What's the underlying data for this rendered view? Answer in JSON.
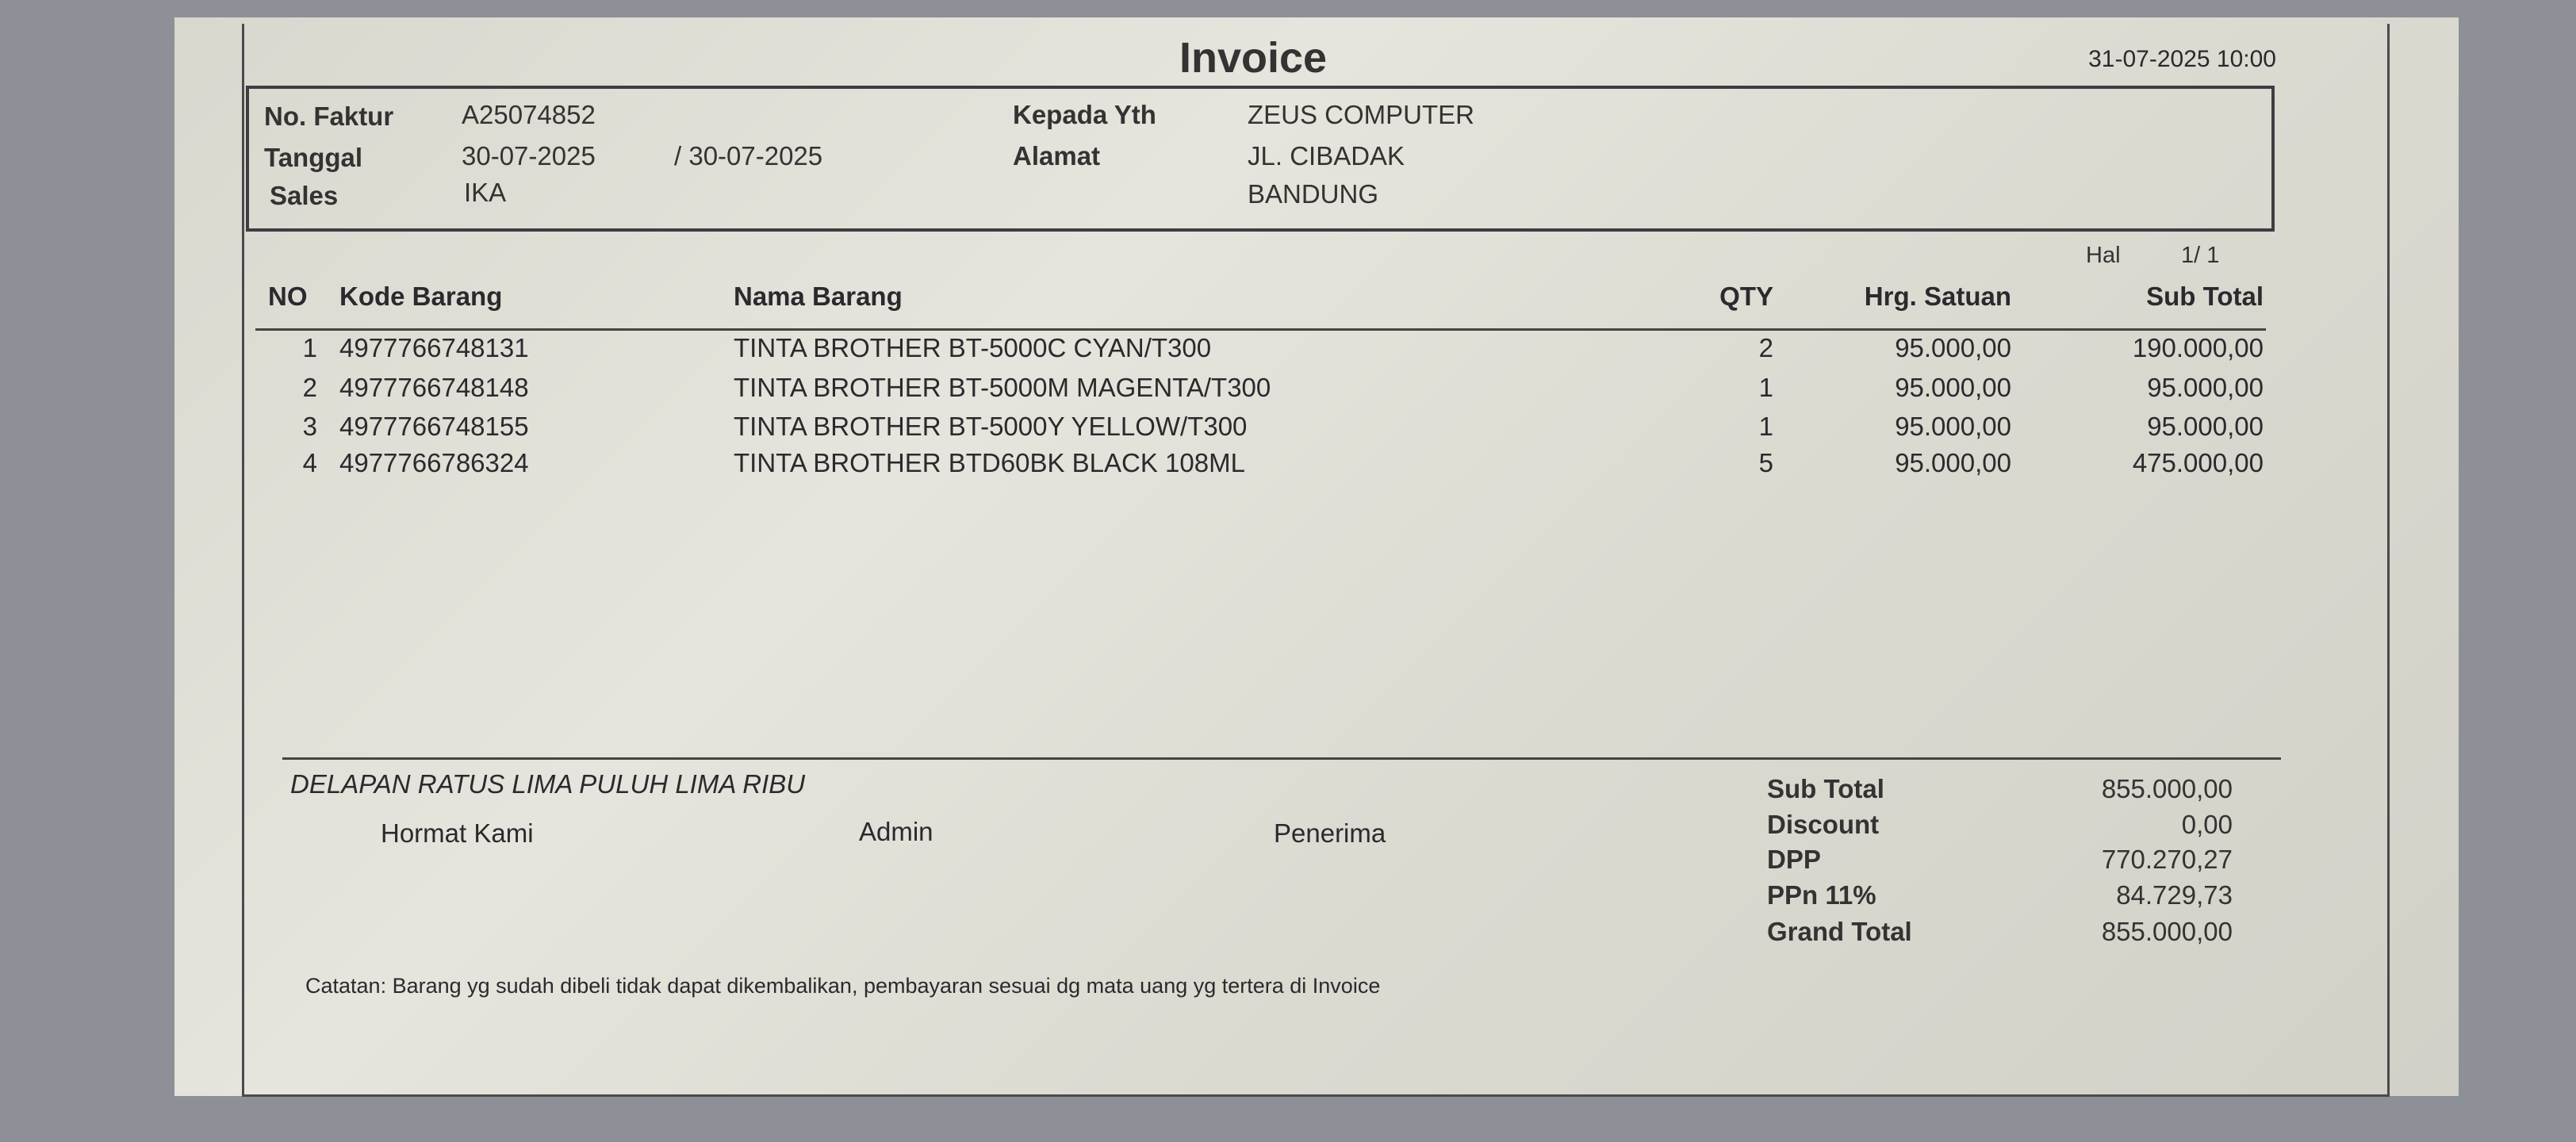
{
  "title": "Invoice",
  "printed_at": "31-07-2025 10:00",
  "header": {
    "no_faktur_label": "No. Faktur",
    "no_faktur": "A25074852",
    "tanggal_label": "Tanggal",
    "tanggal": "30-07-2025",
    "tanggal2": "/ 30-07-2025",
    "sales_label": "Sales",
    "sales": "IKA",
    "kepada_label": "Kepada Yth",
    "kepada": "ZEUS COMPUTER",
    "alamat_label": "Alamat",
    "alamat1": "JL. CIBADAK",
    "alamat2": "BANDUNG"
  },
  "page": {
    "label": "Hal",
    "value": "1/  1"
  },
  "columns": {
    "no": "NO",
    "kode": "Kode Barang",
    "nama": "Nama Barang",
    "qty": "QTY",
    "harga": "Hrg. Satuan",
    "subtotal": "Sub Total"
  },
  "items": [
    {
      "no": "1",
      "kode": "4977766748131",
      "nama": "TINTA BROTHER BT-5000C CYAN/T300",
      "qty": "2",
      "harga": "95.000,00",
      "subtotal": "190.000,00"
    },
    {
      "no": "2",
      "kode": "4977766748148",
      "nama": "TINTA BROTHER BT-5000M MAGENTA/T300",
      "qty": "1",
      "harga": "95.000,00",
      "subtotal": "95.000,00"
    },
    {
      "no": "3",
      "kode": "4977766748155",
      "nama": "TINTA BROTHER BT-5000Y YELLOW/T300",
      "qty": "1",
      "harga": "95.000,00",
      "subtotal": "95.000,00"
    },
    {
      "no": "4",
      "kode": "4977766786324",
      "nama": "TINTA BROTHER BTD60BK BLACK 108ML",
      "qty": "5",
      "harga": "95.000,00",
      "subtotal": "475.000,00"
    }
  ],
  "terbilang": "DELAPAN RATUS LIMA PULUH LIMA RIBU",
  "signatures": {
    "hormat": "Hormat Kami",
    "admin": "Admin",
    "penerima": "Penerima"
  },
  "totals": [
    {
      "label": "Sub Total",
      "value": "855.000,00"
    },
    {
      "label": "Discount",
      "value": "0,00"
    },
    {
      "label": "DPP",
      "value": "770.270,27"
    },
    {
      "label": "PPn 11%",
      "value": "84.729,73"
    },
    {
      "label": "Grand Total",
      "value": "855.000,00"
    }
  ],
  "catatan": "Catatan: Barang yg sudah dibeli tidak dapat dikembalikan, pembayaran sesuai dg mata uang yg tertera di Invoice"
}
